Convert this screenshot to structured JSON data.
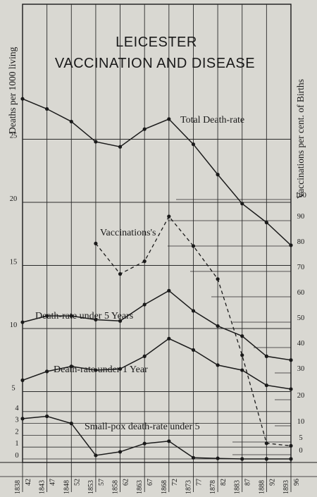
{
  "chart_data": {
    "type": "line",
    "title_lines": [
      "LEICESTER",
      "VACCINATION AND DISEASE"
    ],
    "ylabel_left": "Deaths per 1000 living",
    "ylabel_right": "Vaccinations per cent. of Births",
    "x_top_labels": [
      "1838",
      "1843",
      "1848",
      "1853",
      "1858",
      "1863",
      "1868",
      "1873",
      "1878",
      "1883",
      "1888",
      "1893"
    ],
    "x_bottom_labels": [
      "42",
      "47",
      "52",
      "57",
      "62",
      "67",
      "72",
      "77",
      "82",
      "87",
      "92",
      "96"
    ],
    "x_periods": [
      "1838-42",
      "1843-47",
      "1848-52",
      "1853-57",
      "1858-62",
      "1863-67",
      "1868-72",
      "1873-77",
      "1878-82",
      "1883-87",
      "1888-92",
      "1893-96"
    ],
    "left_axis_ticks_upper": [
      "25",
      "20",
      "15",
      "10",
      "5"
    ],
    "left_axis_ticks_lower": [
      "4",
      "3",
      "2",
      "1",
      "0"
    ],
    "right_axis_ticks": [
      "100",
      "90",
      "80",
      "70",
      "60",
      "50",
      "40",
      "30",
      "20",
      "10",
      "5",
      "0"
    ],
    "series": [
      {
        "name": "Total Death-rate",
        "style": "solid",
        "axis": "left-upper",
        "values": [
          28.2,
          27.4,
          26.4,
          24.8,
          24.4,
          25.8,
          26.6,
          24.6,
          22.2,
          19.9,
          18.4,
          16.6
        ]
      },
      {
        "name": "Vaccinations",
        "style": "dashed",
        "axis": "right",
        "values": [
          null,
          null,
          null,
          81.0,
          69.0,
          74.0,
          92.0,
          80.0,
          67.0,
          37.0,
          4.5,
          3.5
        ]
      },
      {
        "name": "Death-rate under 5 Years",
        "style": "solid",
        "axis": "left-upper",
        "values": [
          10.5,
          11.0,
          11.0,
          10.7,
          10.6,
          11.9,
          13.0,
          11.4,
          10.2,
          9.4,
          7.8,
          7.5
        ]
      },
      {
        "name": "Death-rate under 1 Year",
        "style": "solid",
        "axis": "left-upper",
        "values": [
          5.9,
          6.6,
          7.0,
          6.7,
          6.8,
          7.8,
          9.2,
          8.3,
          7.1,
          6.7,
          5.5,
          5.2
        ]
      },
      {
        "name": "Small-pox death-rate under 5",
        "style": "solid",
        "axis": "left-lower",
        "values": [
          3.4,
          3.6,
          3.0,
          0.3,
          0.6,
          1.3,
          1.5,
          0.1,
          0.05,
          0.0,
          0.0,
          0.0
        ]
      }
    ],
    "grid": true,
    "legend": "inline labels"
  }
}
